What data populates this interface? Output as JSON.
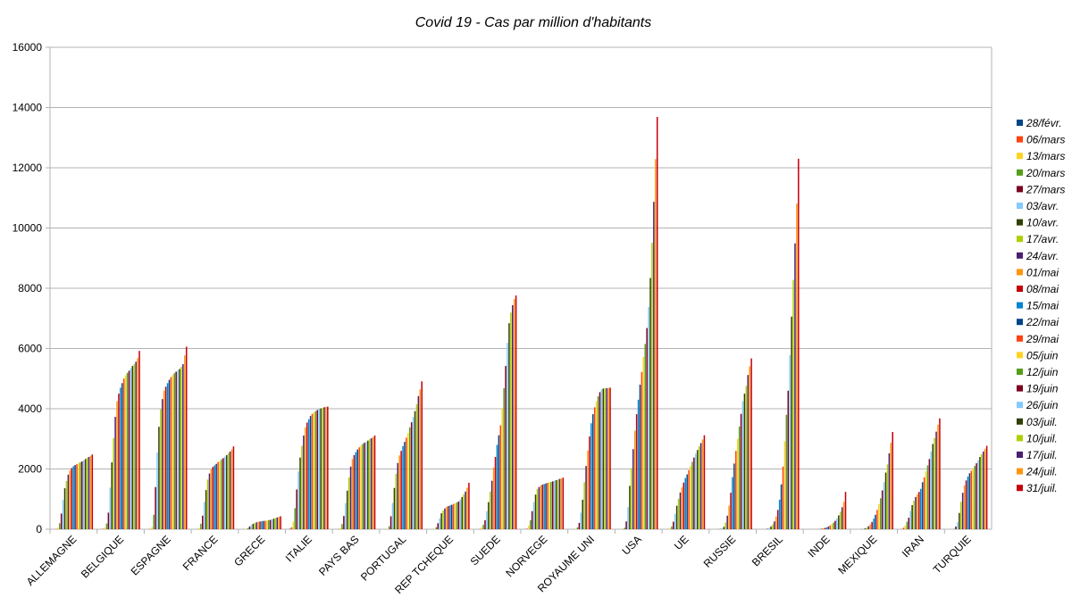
{
  "chart_data": {
    "type": "bar",
    "title": "Covid 19 - Cas par million d'habitants",
    "ylim": [
      0,
      16000
    ],
    "yticks": [
      0,
      2000,
      4000,
      6000,
      8000,
      10000,
      12000,
      14000,
      16000
    ],
    "grid": true,
    "legend_position": "right",
    "categories": [
      "ALLEMAGNE",
      "BELGIQUE",
      "ESPAGNE",
      "FRANCE",
      "GRECE",
      "ITALIE",
      "PAYS BAS",
      "PORTUGAL",
      "REP TCHEQUE",
      "SUEDE",
      "NORVEGE",
      "ROYAUME UNI",
      "USA",
      "UE",
      "RUSSIE",
      "BRESIL",
      "INDE",
      "MEXIQUE",
      "IRAN",
      "TURQUIE"
    ],
    "series": [
      {
        "name": "28/févr.",
        "color": "#004586",
        "values": [
          1,
          1,
          1,
          1,
          0,
          14,
          0,
          0,
          0,
          1,
          4,
          0,
          0,
          1,
          0,
          0,
          0,
          0,
          5,
          0
        ]
      },
      {
        "name": "06/mars",
        "color": "#ff420e",
        "values": [
          10,
          15,
          8,
          6,
          3,
          63,
          7,
          2,
          2,
          8,
          20,
          2,
          1,
          6,
          0,
          0,
          0,
          0,
          50,
          0
        ]
      },
      {
        "name": "13/mars",
        "color": "#ffd320",
        "values": [
          45,
          50,
          70,
          40,
          12,
          250,
          40,
          15,
          10,
          60,
          120,
          12,
          6,
          25,
          1,
          1,
          0,
          0,
          120,
          0
        ]
      },
      {
        "name": "20/mars",
        "color": "#579d1c",
        "values": [
          200,
          190,
          480,
          180,
          40,
          700,
          170,
          100,
          70,
          150,
          300,
          60,
          50,
          90,
          3,
          4,
          0,
          1,
          250,
          10
        ]
      },
      {
        "name": "27/mars",
        "color": "#7e0021",
        "values": [
          520,
          550,
          1400,
          450,
          90,
          1320,
          440,
          430,
          200,
          300,
          600,
          210,
          260,
          250,
          8,
          15,
          1,
          5,
          380,
          90
        ]
      },
      {
        "name": "03/avr.",
        "color": "#83caff",
        "values": [
          970,
          1380,
          2550,
          900,
          140,
          1920,
          870,
          870,
          360,
          600,
          900,
          550,
          730,
          510,
          25,
          45,
          2,
          13,
          610,
          240
        ]
      },
      {
        "name": "10/avr.",
        "color": "#314004",
        "values": [
          1360,
          2220,
          3400,
          1300,
          180,
          2380,
          1280,
          1370,
          530,
          900,
          1150,
          980,
          1440,
          780,
          80,
          90,
          5,
          28,
          800,
          540
        ]
      },
      {
        "name": "17/avr.",
        "color": "#aecf00",
        "values": [
          1600,
          3020,
          3980,
          1650,
          200,
          2770,
          1720,
          1840,
          620,
          1250,
          1330,
          1560,
          2030,
          1010,
          220,
          160,
          10,
          55,
          950,
          910
        ]
      },
      {
        "name": "24/avr.",
        "color": "#4b1f6f",
        "values": [
          1810,
          3730,
          4320,
          1850,
          230,
          3110,
          2080,
          2200,
          690,
          1610,
          1400,
          2100,
          2660,
          1220,
          450,
          260,
          17,
          100,
          1070,
          1210
        ]
      },
      {
        "name": "01/mai",
        "color": "#ff950e",
        "values": [
          1950,
          4250,
          4600,
          1990,
          250,
          3380,
          2330,
          2450,
          740,
          2050,
          1450,
          2610,
          3270,
          1390,
          780,
          420,
          28,
          160,
          1160,
          1450
        ]
      },
      {
        "name": "08/mai",
        "color": "#c5000b",
        "values": [
          2030,
          4500,
          4730,
          2070,
          255,
          3540,
          2460,
          2600,
          770,
          2400,
          1480,
          3080,
          3820,
          1550,
          1210,
          640,
          42,
          240,
          1240,
          1620
        ]
      },
      {
        "name": "15/mai",
        "color": "#0084d1",
        "values": [
          2090,
          4700,
          4850,
          2120,
          265,
          3650,
          2560,
          2760,
          790,
          2800,
          1500,
          3520,
          4300,
          1700,
          1730,
          980,
          62,
          350,
          1340,
          1750
        ]
      },
      {
        "name": "22/mai",
        "color": "#004586",
        "values": [
          2130,
          4850,
          4960,
          2170,
          275,
          3760,
          2650,
          2900,
          810,
          3120,
          1520,
          3820,
          4800,
          1820,
          2180,
          1490,
          88,
          480,
          1560,
          1860
        ]
      },
      {
        "name": "29/mai",
        "color": "#ff420e",
        "values": [
          2160,
          5000,
          5050,
          2230,
          280,
          3830,
          2720,
          3040,
          840,
          3450,
          1540,
          4050,
          5220,
          1960,
          2600,
          2080,
          125,
          640,
          1720,
          1940
        ]
      },
      {
        "name": "05/juin",
        "color": "#ffd320",
        "values": [
          2190,
          5110,
          5120,
          2260,
          290,
          3880,
          2780,
          3200,
          860,
          4010,
          1560,
          4250,
          5720,
          2100,
          3000,
          2920,
          170,
          840,
          1920,
          2020
        ]
      },
      {
        "name": "12/juin",
        "color": "#579d1c",
        "values": [
          2220,
          5190,
          5180,
          2320,
          300,
          3920,
          2830,
          3380,
          890,
          4680,
          1570,
          4410,
          6150,
          2240,
          3410,
          3800,
          220,
          1030,
          2120,
          2100
        ]
      },
      {
        "name": "19/juin",
        "color": "#7e0021",
        "values": [
          2250,
          5260,
          5230,
          2360,
          310,
          3960,
          2870,
          3550,
          920,
          5420,
          1590,
          4550,
          6680,
          2380,
          3830,
          4600,
          280,
          1290,
          2330,
          2190
        ]
      },
      {
        "name": "26/juin",
        "color": "#83caff",
        "values": [
          2290,
          5340,
          5280,
          2410,
          330,
          3990,
          2900,
          3720,
          980,
          6190,
          1610,
          4640,
          7380,
          2510,
          4250,
          5780,
          360,
          1560,
          2580,
          2290
        ]
      },
      {
        "name": "03/juil.",
        "color": "#314004",
        "values": [
          2330,
          5420,
          5320,
          2460,
          350,
          4010,
          2940,
          3920,
          1070,
          6840,
          1630,
          4670,
          8340,
          2630,
          4500,
          7060,
          460,
          1880,
          2830,
          2400
        ]
      },
      {
        "name": "10/juil.",
        "color": "#aecf00",
        "values": [
          2370,
          5480,
          5390,
          2530,
          370,
          4030,
          2990,
          4150,
          1160,
          7190,
          1650,
          4680,
          9510,
          2750,
          4760,
          8280,
          580,
          2150,
          3030,
          2500
        ]
      },
      {
        "name": "17/juil.",
        "color": "#4b1f6f",
        "values": [
          2400,
          5560,
          5480,
          2580,
          390,
          4050,
          3020,
          4420,
          1250,
          7440,
          1670,
          4680,
          10870,
          2860,
          5120,
          9490,
          730,
          2520,
          3240,
          2580
        ]
      },
      {
        "name": "24/juil.",
        "color": "#ff950e",
        "values": [
          2440,
          5680,
          5770,
          2650,
          410,
          4060,
          3060,
          4640,
          1380,
          7640,
          1690,
          4690,
          12290,
          2980,
          5410,
          10810,
          910,
          2870,
          3470,
          2670
        ]
      },
      {
        "name": "31/juil.",
        "color": "#c5000b",
        "values": [
          2480,
          5920,
          6060,
          2750,
          430,
          4070,
          3110,
          4910,
          1540,
          7760,
          1710,
          4700,
          13690,
          3120,
          5670,
          12300,
          1240,
          3230,
          3680,
          2770
        ]
      }
    ]
  }
}
